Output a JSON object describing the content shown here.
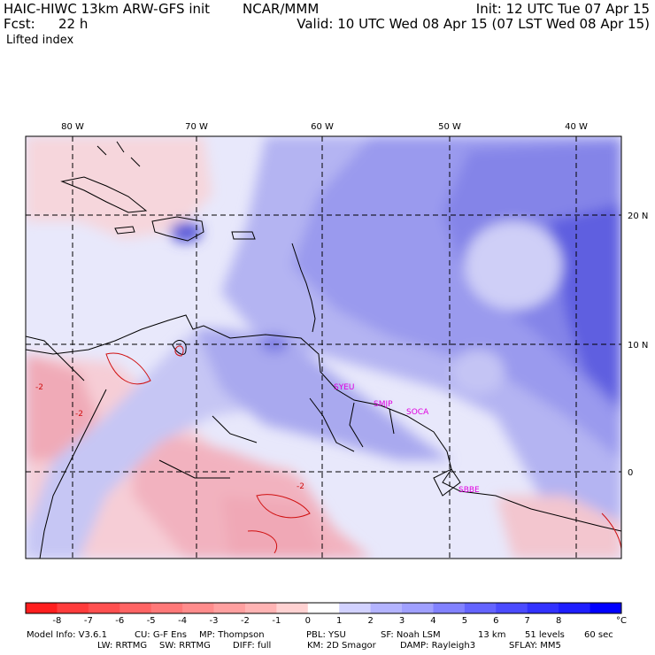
{
  "header": {
    "model": "HAIC-HIWC 13km ARW-GFS init",
    "org": "NCAR/MMM",
    "init": "Init: 12 UTC Tue 07 Apr 15",
    "fcst_label": "Fcst:",
    "fcst_value": "22 h",
    "valid": "Valid: 10 UTC Wed 08 Apr 15 (07 LST Wed 08 Apr 15)",
    "field": "Lifted index"
  },
  "map": {
    "lon_labels": [
      "80 W",
      "70 W",
      "60 W",
      "50 W",
      "40 W"
    ],
    "lat_labels": [
      "20 N",
      "10 N",
      "0"
    ],
    "stations": [
      "SYEU",
      "SMJP",
      "SOCA",
      "SBBE"
    ],
    "contour_labels": [
      "-2",
      "-2",
      "-2"
    ]
  },
  "colorbar": {
    "ticks": [
      "-8",
      "-7",
      "-6",
      "-5",
      "-4",
      "-3",
      "-2",
      "-1",
      "0",
      "1",
      "2",
      "3",
      "4",
      "5",
      "6",
      "7",
      "8"
    ],
    "unit": "°C",
    "colors": [
      "#ff1e1e",
      "#ff3c3c",
      "#ff5050",
      "#ff6464",
      "#ff7878",
      "#ff8c8c",
      "#ffa0a0",
      "#ffb4b4",
      "#ffd2d2",
      "#ffffff",
      "#d2d2ff",
      "#b4b4ff",
      "#a0a0ff",
      "#8282ff",
      "#6464ff",
      "#4b4bff",
      "#3232ff",
      "#1e1eff",
      "#0000ff"
    ]
  },
  "footer": {
    "line1": [
      {
        "k": "Model Info: V3.6.1"
      },
      {
        "k": "CU: G-F Ens"
      },
      {
        "k": "MP: Thompson"
      },
      {
        "k": "PBL: YSU"
      },
      {
        "k": "SF: Noah LSM"
      },
      {
        "k": "13 km"
      },
      {
        "k": "51 levels"
      },
      {
        "k": "60 sec"
      }
    ],
    "line2": [
      {
        "k": "LW: RRTMG"
      },
      {
        "k": "SW: RRTMG"
      },
      {
        "k": "DIFF: full"
      },
      {
        "k": "KM: 2D Smagor"
      },
      {
        "k": "DAMP: Rayleigh3"
      },
      {
        "k": "SFLAY: MM5"
      }
    ]
  }
}
